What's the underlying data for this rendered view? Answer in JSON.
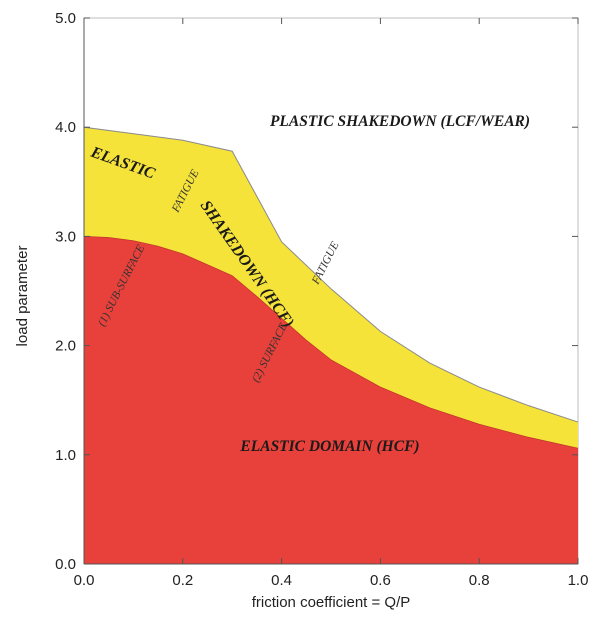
{
  "chart_data": {
    "type": "area",
    "xlabel": "friction coefficient = Q/P",
    "ylabel": "load parameter",
    "xlim": [
      0.0,
      1.0
    ],
    "ylim": [
      0.0,
      5.0
    ],
    "x_ticks": [
      "0.0",
      "0.2",
      "0.4",
      "0.6",
      "0.8",
      "1.0"
    ],
    "y_ticks": [
      "0.0",
      "1.0",
      "2.0",
      "3.0",
      "4.0",
      "5.0"
    ],
    "grid": false,
    "colors": {
      "elastic_domain": "#e8403a",
      "elastic_shakedown": "#f5e33a",
      "plastic_shakedown": "#ffffff",
      "boundary": "#8a8a8a"
    },
    "series": [
      {
        "id": "elastic_limit",
        "x": [
          0.0,
          0.05,
          0.1,
          0.15,
          0.2,
          0.25,
          0.3,
          0.35,
          0.4,
          0.45,
          0.5,
          0.6,
          0.7,
          0.8,
          0.9,
          1.0
        ],
        "y": [
          3.0,
          2.99,
          2.96,
          2.91,
          2.84,
          2.74,
          2.64,
          2.45,
          2.25,
          2.05,
          1.87,
          1.62,
          1.43,
          1.28,
          1.16,
          1.06
        ]
      },
      {
        "id": "shakedown_limit",
        "x": [
          0.0,
          0.2,
          0.3,
          0.4,
          0.5,
          0.6,
          0.7,
          0.8,
          0.9,
          1.0
        ],
        "y": [
          4.0,
          3.88,
          3.78,
          2.95,
          2.52,
          2.13,
          1.84,
          1.62,
          1.45,
          1.3
        ]
      }
    ],
    "annotations": [
      {
        "text": "PLASTIC SHAKEDOWN (LCF/WEAR)"
      },
      {
        "text": "ELASTIC"
      },
      {
        "text": "SHAKEDOWN (HCF)"
      },
      {
        "text": "ELASTIC DOMAIN (HCF)"
      },
      {
        "text": "FATIGUE"
      },
      {
        "text": "(1) SUB-SURFACE"
      },
      {
        "text": "(2) SURFACE"
      },
      {
        "text": "FATIGUE"
      }
    ]
  }
}
